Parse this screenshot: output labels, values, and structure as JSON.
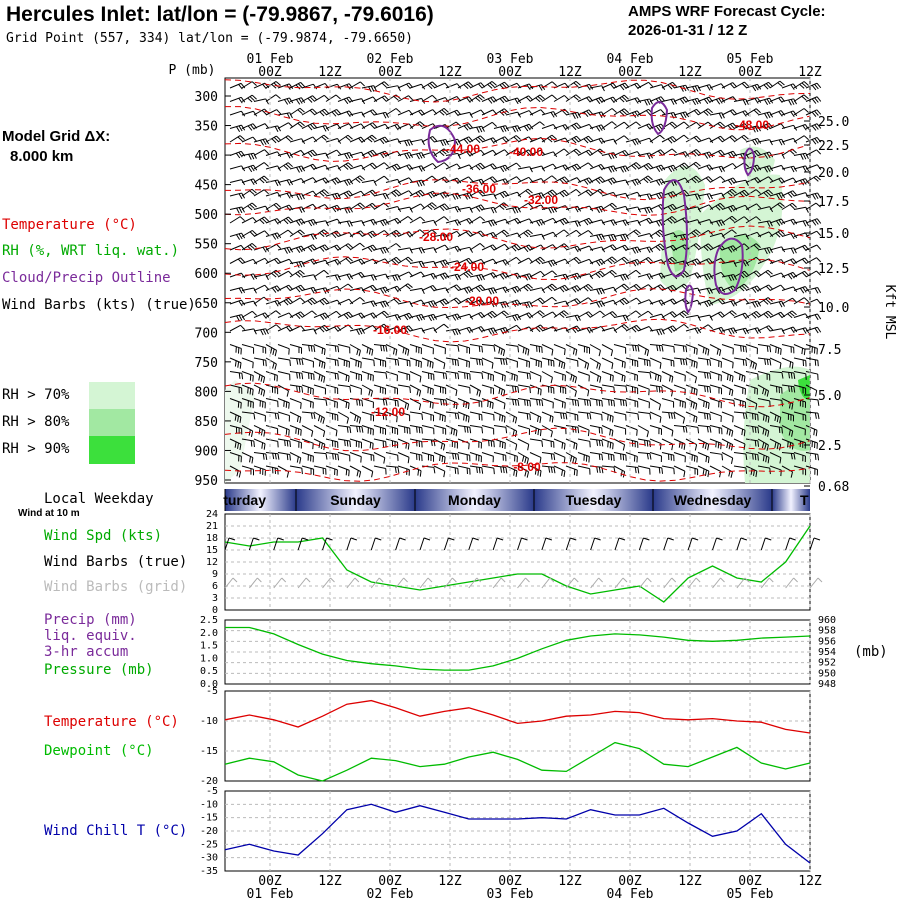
{
  "header": {
    "title": "Hercules Inlet:  lat/lon = (-79.9867, -79.6016)",
    "grid_point": "Grid Point (557, 334) lat/lon = (-79.9874, -79.6650)",
    "cycle_label": "AMPS WRF Forecast Cycle:",
    "cycle_value": "2026-01-31 / 12  Z"
  },
  "model": {
    "grid_label": "Model Grid ΔX:",
    "grid_value": "8.000 km"
  },
  "legend": {
    "temperature": "Temperature (°C)",
    "rh": "RH (%, WRT liq. wat.)",
    "cloud": "Cloud/Precip Outline",
    "wind_barbs": "Wind Barbs (kts) (true)",
    "rh70": "RH > 70%",
    "rh80": "RH > 80%",
    "rh90": "RH > 90%",
    "rh70_color": "#d4f5d4",
    "rh80_color": "#a2e8a2",
    "rh90_color": "#3ce03c"
  },
  "colors": {
    "temperature": "#dd0000",
    "rh": "#00aa00",
    "cloud": "#7a2a9a",
    "dewpoint": "#00bb00",
    "windchill": "#0000aa",
    "grid": "#aaaaaa"
  },
  "time_axis": {
    "tick_labels": [
      "00Z",
      "12Z",
      "00Z",
      "12Z",
      "00Z",
      "12Z",
      "00Z",
      "12Z",
      "00Z",
      "12Z"
    ],
    "date_labels": [
      "01 Feb",
      "02 Feb",
      "03 Feb",
      "04 Feb",
      "05 Feb"
    ]
  },
  "weekday_row": {
    "label": "Local Weekday",
    "days": [
      "Saturday",
      "Sunday",
      "Monday",
      "Tuesday",
      "Wednesday",
      "Thursday"
    ],
    "visible_text": [
      "turday",
      "Sunday",
      "Monday",
      "Tuesday",
      "Wednesday",
      "T"
    ]
  },
  "panels": {
    "wind": {
      "note": "Wind at 10 m",
      "labels": [
        "Wind Spd (kts)",
        "Wind Barbs (true)",
        "Wind Barbs (grid)"
      ]
    },
    "precip": {
      "labels": [
        "Precip (mm)",
        "liq. equiv.",
        "3-hr accum",
        "Pressure (mb)"
      ],
      "right_unit": "(mb)"
    },
    "temp": {
      "labels": [
        "Temperature (°C)",
        "Dewpoint (°C)"
      ]
    },
    "windchill": {
      "labels": [
        "Wind Chill T (°C)"
      ]
    }
  },
  "chart_data": [
    {
      "type": "contour",
      "y_axis_label": "P (mb)",
      "right_axis_label": "Kft MSL",
      "pressure_ticks": [
        "300",
        "350",
        "400",
        "450",
        "500",
        "550",
        "600",
        "650",
        "700",
        "750",
        "800",
        "850",
        "900",
        "950"
      ],
      "height_ticks": [
        "25.0",
        "22.5",
        "20.0",
        "17.5",
        "15.0",
        "12.5",
        "10.0",
        "7.5",
        "5.0",
        "2.5",
        "0.68"
      ],
      "temperature_contour_labels": [
        "-48.00",
        "-44.00",
        "-40.00",
        "-36.00",
        "-32.00",
        "-28.00",
        "-24.00",
        "-20.00",
        "-16.00",
        "-12.00",
        "-8.00"
      ]
    },
    {
      "type": "line",
      "name": "Wind Spd (kts)",
      "ylim": [
        0,
        24
      ],
      "yticks": [
        "0",
        "3",
        "6",
        "9",
        "12",
        "15",
        "18",
        "21",
        "24"
      ],
      "x_hours": [
        0,
        6,
        12,
        18,
        24,
        30,
        36,
        42,
        48,
        54,
        60,
        66,
        72,
        78,
        84,
        90,
        96,
        102,
        108,
        114,
        120,
        126,
        132,
        138,
        144
      ],
      "values": [
        17,
        16,
        17,
        17,
        18,
        10,
        7,
        6,
        5,
        6,
        7,
        8,
        9,
        9,
        6,
        4,
        5,
        6,
        2,
        8,
        11,
        8,
        7,
        12,
        21
      ]
    },
    {
      "type": "line",
      "name": "Pressure (mb)",
      "left_yticks": [
        "0.0",
        "0.5",
        "1.0",
        "1.5",
        "2.0",
        "2.5"
      ],
      "right_yticks": [
        "948",
        "950",
        "952",
        "954",
        "956",
        "958",
        "960"
      ],
      "ylim": [
        948,
        960
      ],
      "x_hours": [
        0,
        6,
        12,
        18,
        24,
        30,
        36,
        42,
        48,
        54,
        60,
        66,
        72,
        78,
        84,
        90,
        96,
        102,
        108,
        114,
        120,
        126,
        132,
        138,
        144
      ],
      "values": [
        958.6,
        958.6,
        957.4,
        955.4,
        953.6,
        952.4,
        951.8,
        951.4,
        950.8,
        950.6,
        950.6,
        951.4,
        952.8,
        954.6,
        956.2,
        957.0,
        957.4,
        957.2,
        956.8,
        956.2,
        956.0,
        956.2,
        956.6,
        956.8,
        957.0
      ]
    },
    {
      "type": "line",
      "yticks": [
        "-5",
        "-10",
        "-15",
        "-20"
      ],
      "ylim": [
        -20,
        -5
      ],
      "x_hours": [
        0,
        6,
        12,
        18,
        24,
        30,
        36,
        42,
        48,
        54,
        60,
        66,
        72,
        78,
        84,
        90,
        96,
        102,
        108,
        114,
        120,
        126,
        132,
        138,
        144
      ],
      "series": [
        {
          "name": "Temperature (°C)",
          "values": [
            -9.8,
            -9.0,
            -9.8,
            -11.0,
            -9.2,
            -7.2,
            -6.6,
            -7.8,
            -9.2,
            -8.4,
            -7.8,
            -9.0,
            -10.4,
            -10.0,
            -9.2,
            -9.0,
            -8.4,
            -8.6,
            -9.6,
            -9.8,
            -9.6,
            -10.0,
            -10.2,
            -11.4,
            -12.0
          ]
        },
        {
          "name": "Dewpoint (°C)",
          "values": [
            -17.2,
            -16.2,
            -16.8,
            -19.0,
            -20.0,
            -18.2,
            -16.2,
            -16.6,
            -17.6,
            -17.2,
            -16.0,
            -15.2,
            -16.4,
            -18.2,
            -18.4,
            -16.0,
            -13.6,
            -14.6,
            -17.2,
            -17.6,
            -16.0,
            -14.4,
            -17.0,
            -18.0,
            -17.0
          ]
        }
      ]
    },
    {
      "type": "line",
      "name": "Wind Chill T (°C)",
      "yticks": [
        "-5",
        "-10",
        "-15",
        "-20",
        "-25",
        "-30",
        "-35"
      ],
      "ylim": [
        -35,
        -5
      ],
      "x_hours": [
        0,
        6,
        12,
        18,
        24,
        30,
        36,
        42,
        48,
        54,
        60,
        66,
        72,
        78,
        84,
        90,
        96,
        102,
        108,
        114,
        120,
        126,
        132,
        138,
        144
      ],
      "values": [
        -27,
        -25,
        -27.5,
        -29,
        -21,
        -12,
        -10,
        -13,
        -10.5,
        -13,
        -15.5,
        -15.5,
        -15.5,
        -15,
        -15.5,
        -12,
        -14,
        -14,
        -11.5,
        -17,
        -22,
        -20,
        -13.5,
        -25,
        -32
      ]
    }
  ]
}
